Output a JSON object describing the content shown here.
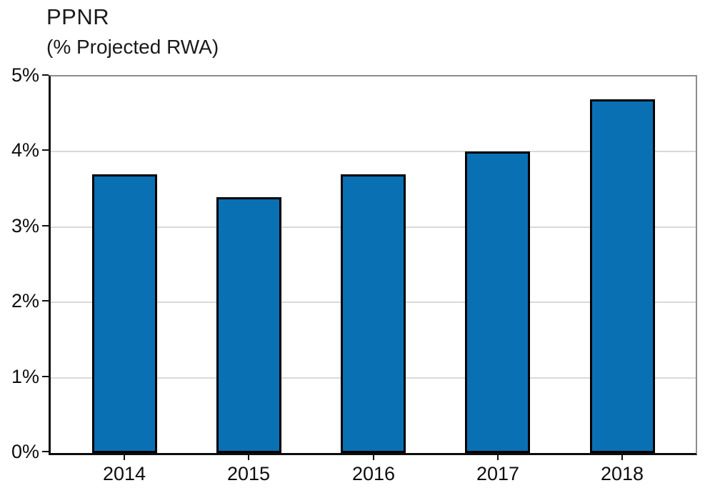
{
  "page": {
    "background": "#ffffff"
  },
  "chart_data": {
    "type": "bar",
    "title": "PPNR",
    "subtitle": "(% Projected RWA)",
    "categories": [
      "2014",
      "2015",
      "2016",
      "2017",
      "2018"
    ],
    "values": [
      3.7,
      3.4,
      3.7,
      4.0,
      4.7
    ],
    "unit": "%",
    "xlabel": "",
    "ylabel": "",
    "ylim": [
      0,
      5
    ],
    "ytick_values": [
      0,
      1,
      2,
      3,
      4,
      5
    ],
    "ytick_labels": [
      "0%",
      "1%",
      "2%",
      "3%",
      "4%",
      "5%"
    ],
    "grid": "horizontal",
    "legend_position": "none",
    "colors": {
      "bar_fill": "#0a70b4",
      "bar_border": "#000000",
      "gridline": "#d9d9d9",
      "axis": "#0d0d0d",
      "frame": "#8c8c8c",
      "text": "#1a1a1a"
    }
  }
}
